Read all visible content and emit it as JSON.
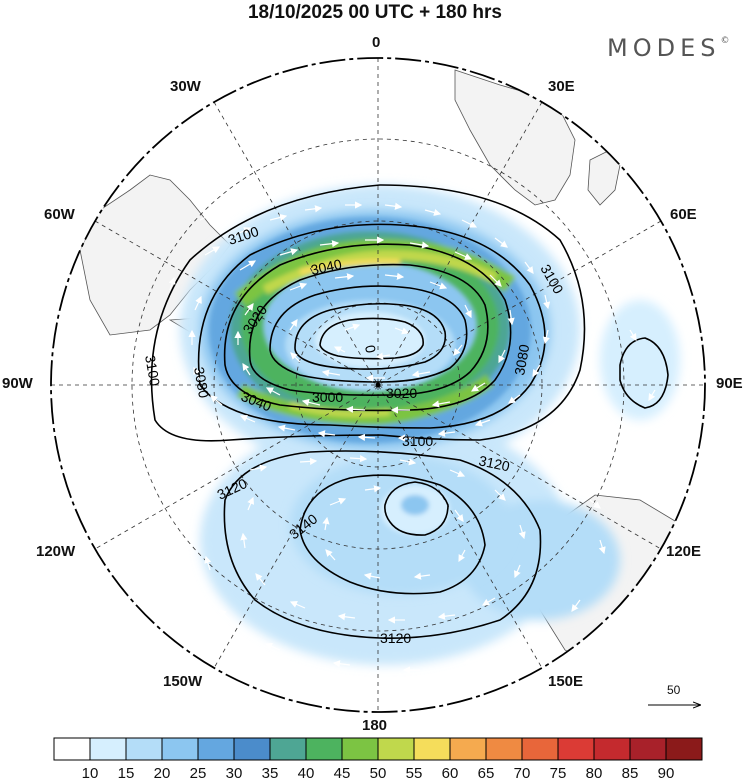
{
  "title": "18/10/2025  00 UTC  + 180 hrs",
  "brand": {
    "name": "MODES",
    "mark": "©"
  },
  "meridian_labels": {
    "lon_0": "0",
    "lon_30e": "30E",
    "lon_60e": "60E",
    "lon_90e": "90E",
    "lon_120e": "120E",
    "lon_150e": "150E",
    "lon_180": "180",
    "lon_150w": "150W",
    "lon_120w": "120W",
    "lon_90w": "90W",
    "lon_60w": "60W",
    "lon_30w": "30W"
  },
  "contour_labels": [
    "3100",
    "3040",
    "3020",
    "0",
    "3080",
    "3100",
    "3080",
    "3000",
    "3020",
    "3040",
    "3100",
    "3100",
    "3120",
    "3120",
    "3140",
    "3120"
  ],
  "reference_vector": {
    "value": "50"
  },
  "colorbar": {
    "ticks": [
      "10",
      "15",
      "20",
      "25",
      "30",
      "35",
      "40",
      "45",
      "50",
      "55",
      "60",
      "65",
      "70",
      "75",
      "80",
      "85",
      "90"
    ],
    "colors": [
      "#ffffff",
      "#d6effe",
      "#b4ddf8",
      "#8cc6f0",
      "#64a7e0",
      "#4b8ccb",
      "#4ea694",
      "#4db35f",
      "#7cc443",
      "#c0d84c",
      "#f5dd5b",
      "#f5aa4f",
      "#ef8a42",
      "#e8663a",
      "#db3b35",
      "#c42a2e",
      "#a8212a",
      "#8b1a1a"
    ]
  },
  "colors": {
    "land": "#f3f3f3",
    "coast": "#555555",
    "contour": "#000000",
    "vector": "#ffffff"
  }
}
